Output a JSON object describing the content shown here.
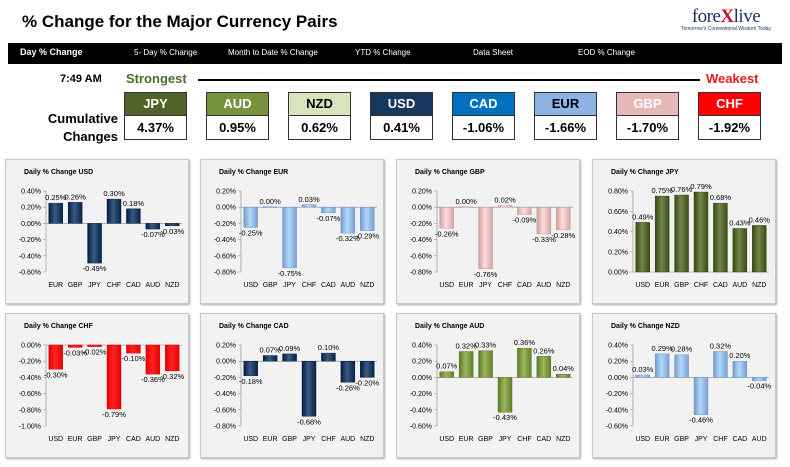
{
  "header": {
    "title": "% Change for the Major Currency Pairs",
    "logo": "forexlive",
    "logo_tagline": "Tomorrow's Conventional Wisdom Today"
  },
  "nav": [
    {
      "label": "Day % Change"
    },
    {
      "label": "5- Day % Change"
    },
    {
      "label": "Month to Date % Change"
    },
    {
      "label": "YTD % Change"
    },
    {
      "label": "Data Sheet"
    },
    {
      "label": "EOD % Change"
    }
  ],
  "summary": {
    "time": "7:49 AM",
    "strongest_label": "Strongest",
    "weakest_label": "Weakest",
    "cumulative_label_line1": "Cumulative",
    "cumulative_label_line2": "Changes",
    "currencies": [
      {
        "code": "JPY",
        "value": "4.37%",
        "bg": "#4f6228",
        "fg": "#ffffff"
      },
      {
        "code": "AUD",
        "value": "0.95%",
        "bg": "#77933c",
        "fg": "#ffffff"
      },
      {
        "code": "NZD",
        "value": "0.62%",
        "bg": "#d7e4bd",
        "fg": "#000000"
      },
      {
        "code": "USD",
        "value": "0.41%",
        "bg": "#17375e",
        "fg": "#ffffff"
      },
      {
        "code": "CAD",
        "value": "-1.06%",
        "bg": "#0070c0",
        "fg": "#ffffff"
      },
      {
        "code": "EUR",
        "value": "-1.66%",
        "bg": "#8db4e2",
        "fg": "#000000"
      },
      {
        "code": "GBP",
        "value": "-1.70%",
        "bg": "#e6b9b8",
        "fg": "#ffffff"
      },
      {
        "code": "CHF",
        "value": "-1.92%",
        "bg": "#ff0000",
        "fg": "#ffffff"
      }
    ]
  },
  "chart_data": [
    {
      "type": "bar",
      "title": "Daily % Change USD",
      "categories": [
        "EUR",
        "GBP",
        "JPY",
        "CHF",
        "CAD",
        "AUD",
        "NZD"
      ],
      "values": [
        0.25,
        0.26,
        -0.49,
        0.3,
        0.18,
        -0.07,
        -0.03
      ],
      "labels": [
        "0.25%",
        "0.26%",
        "-0.49%",
        "0.30%",
        "0.18%",
        "-0.07%",
        "-0.03%"
      ],
      "ticks": [
        "0.40%",
        "0.20%",
        "0.00%",
        "-0.20%",
        "-0.40%",
        "-0.60%"
      ],
      "ylim": [
        -0.6,
        0.4
      ],
      "color": "#17375e"
    },
    {
      "type": "bar",
      "title": "Daily % Change EUR",
      "categories": [
        "USD",
        "GBP",
        "JPY",
        "CHF",
        "CAD",
        "AUD",
        "NZD"
      ],
      "values": [
        -0.25,
        0.0,
        -0.75,
        0.03,
        -0.07,
        -0.32,
        -0.29
      ],
      "labels": [
        "-0.25%",
        "0.00%",
        "-0.75%",
        "0.03%",
        "-0.07%",
        "-0.32%",
        "-0.29%"
      ],
      "ticks": [
        "0.20%",
        "0.00%",
        "-0.20%",
        "-0.40%",
        "-0.60%",
        "-0.80%"
      ],
      "ylim": [
        -0.8,
        0.2
      ],
      "color": "#8db4e2"
    },
    {
      "type": "bar",
      "title": "Daily % Change GBP",
      "categories": [
        "USD",
        "EUR",
        "JPY",
        "CHF",
        "CAD",
        "AUD",
        "NZD"
      ],
      "values": [
        -0.26,
        0.0,
        -0.76,
        0.02,
        -0.09,
        -0.33,
        -0.28
      ],
      "labels": [
        "-0.26%",
        "0.00%",
        "-0.76%",
        "0.02%",
        "-0.09%",
        "-0.33%",
        "-0.28%"
      ],
      "ticks": [
        "0.20%",
        "0.00%",
        "-0.20%",
        "-0.40%",
        "-0.60%",
        "-0.80%"
      ],
      "ylim": [
        -0.8,
        0.2
      ],
      "color": "#e6b9b8"
    },
    {
      "type": "bar",
      "title": "Daily % Change JPY",
      "categories": [
        "USD",
        "EUR",
        "GBP",
        "CHF",
        "CAD",
        "AUD",
        "NZD"
      ],
      "values": [
        0.49,
        0.75,
        0.76,
        0.79,
        0.68,
        0.43,
        0.46
      ],
      "labels": [
        "0.49%",
        "0.75%",
        "0.76%",
        "0.79%",
        "0.68%",
        "0.43%",
        "0.46%"
      ],
      "ticks": [
        "0.80%",
        "0.60%",
        "0.40%",
        "0.20%",
        "0.00%"
      ],
      "ylim": [
        0,
        0.8
      ],
      "color": "#4f6228"
    },
    {
      "type": "bar",
      "title": "Daily % Change CHF",
      "categories": [
        "USD",
        "EUR",
        "GBP",
        "JPY",
        "CAD",
        "AUD",
        "NZD"
      ],
      "values": [
        -0.3,
        -0.03,
        -0.02,
        -0.79,
        -0.1,
        -0.36,
        -0.32
      ],
      "labels": [
        "-0.30%",
        "-0.03%",
        "-0.02%",
        "-0.79%",
        "-0.10%",
        "-0.36%",
        "-0.32%"
      ],
      "ticks": [
        "0.00%",
        "-0.20%",
        "-0.40%",
        "-0.60%",
        "-0.80%",
        "-1.00%"
      ],
      "ylim": [
        -1.0,
        0
      ],
      "color": "#ff0000"
    },
    {
      "type": "bar",
      "title": "Daily % Change CAD",
      "categories": [
        "USD",
        "EUR",
        "GBP",
        "JPY",
        "CHF",
        "AUD",
        "NZD"
      ],
      "values": [
        -0.18,
        0.07,
        0.09,
        -0.68,
        0.1,
        -0.26,
        -0.2
      ],
      "labels": [
        "-0.18%",
        "0.07%",
        "0.09%",
        "-0.68%",
        "0.10%",
        "-0.26%",
        "-0.20%"
      ],
      "ticks": [
        "0.20%",
        "0.00%",
        "-0.20%",
        "-0.40%",
        "-0.60%",
        "-0.80%"
      ],
      "ylim": [
        -0.8,
        0.2
      ],
      "color": "#17375e"
    },
    {
      "type": "bar",
      "title": "Daily % Change AUD",
      "categories": [
        "USD",
        "EUR",
        "GBP",
        "JPY",
        "CHF",
        "CAD",
        "NZD"
      ],
      "values": [
        0.07,
        0.32,
        0.33,
        -0.43,
        0.36,
        0.26,
        0.04
      ],
      "labels": [
        "0.07%",
        "0.32%",
        "0.33%",
        "-0.43%",
        "0.36%",
        "0.26%",
        "0.04%"
      ],
      "ticks": [
        "0.40%",
        "0.20%",
        "0.00%",
        "-0.20%",
        "-0.40%",
        "-0.60%"
      ],
      "ylim": [
        -0.6,
        0.4
      ],
      "color": "#77933c"
    },
    {
      "type": "bar",
      "title": "Daily % Change NZD",
      "categories": [
        "USD",
        "EUR",
        "GBP",
        "JPY",
        "CHF",
        "CAD",
        "AUD"
      ],
      "values": [
        0.03,
        0.29,
        0.28,
        -0.46,
        0.32,
        0.2,
        -0.04
      ],
      "labels": [
        "0.03%",
        "0.29%",
        "0.28%",
        "-0.46%",
        "0.32%",
        "0.20%",
        "-0.04%"
      ],
      "ticks": [
        "0.40%",
        "0.20%",
        "0.00%",
        "-0.20%",
        "-0.40%",
        "-0.60%"
      ],
      "ylim": [
        -0.6,
        0.4
      ],
      "color": "#8db4e2"
    }
  ]
}
